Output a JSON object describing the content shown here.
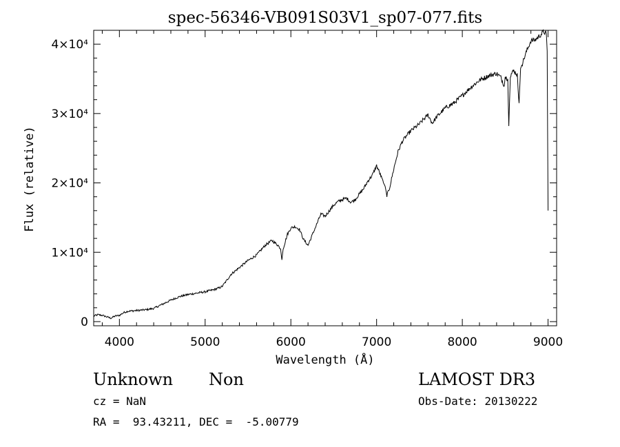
{
  "chart_data": {
    "type": "line",
    "title": "spec-56346-VB091S03V1_sp07-077.fits",
    "xlabel": "Wavelength (Å)",
    "ylabel": "Flux (relative)",
    "xlim": [
      3700,
      9100
    ],
    "ylim": [
      -600,
      42000
    ],
    "x_ticks": [
      4000,
      5000,
      6000,
      7000,
      8000,
      9000
    ],
    "y_ticks": [
      {
        "value": 0,
        "label": "0"
      },
      {
        "value": 10000,
        "label": "1×10⁴"
      },
      {
        "value": 20000,
        "label": "2×10⁴"
      },
      {
        "value": 30000,
        "label": "3×10⁴"
      },
      {
        "value": 40000,
        "label": "4×10⁴"
      }
    ],
    "grid": false,
    "series": [
      {
        "x": [
          3700,
          3750,
          3800,
          3850,
          3900,
          3950,
          4000,
          4050,
          4100,
          4200,
          4300,
          4400,
          4500,
          4600,
          4700,
          4800,
          4900,
          5000,
          5100,
          5170,
          5200,
          5250,
          5300,
          5400,
          5500,
          5600,
          5700,
          5780,
          5850,
          5880,
          5895,
          5910,
          5960,
          6000,
          6050,
          6100,
          6150,
          6200,
          6250,
          6300,
          6350,
          6400,
          6450,
          6500,
          6550,
          6600,
          6650,
          6700,
          6750,
          6800,
          6850,
          6900,
          6950,
          7000,
          7050,
          7080,
          7100,
          7120,
          7150,
          7200,
          7250,
          7300,
          7350,
          7400,
          7450,
          7500,
          7550,
          7600,
          7650,
          7700,
          7800,
          7900,
          8000,
          8100,
          8200,
          8300,
          8400,
          8450,
          8490,
          8500,
          8530,
          8542,
          8560,
          8600,
          8640,
          8662,
          8680,
          8700,
          8750,
          8800,
          8850,
          8900,
          8950,
          8980,
          8990,
          9000
        ],
        "y": [
          800,
          1000,
          900,
          700,
          500,
          800,
          900,
          1300,
          1500,
          1600,
          1700,
          1900,
          2500,
          3100,
          3600,
          3900,
          4100,
          4300,
          4600,
          4900,
          5100,
          5900,
          6800,
          7800,
          8800,
          9600,
          11000,
          11700,
          11000,
          10500,
          8900,
          10500,
          12600,
          13500,
          13700,
          13300,
          11800,
          11000,
          12500,
          14000,
          15500,
          15200,
          16000,
          16800,
          17300,
          17600,
          17800,
          17200,
          17600,
          18400,
          19200,
          20300,
          21100,
          22500,
          21000,
          20000,
          19500,
          18200,
          19200,
          22000,
          24500,
          26000,
          26800,
          27500,
          28000,
          28500,
          29200,
          29800,
          28600,
          29500,
          30800,
          31500,
          32600,
          33800,
          34800,
          35400,
          35800,
          35200,
          34000,
          35300,
          35000,
          28200,
          35500,
          36200,
          35600,
          31500,
          36500,
          37200,
          39000,
          40500,
          40600,
          41200,
          41800,
          41500,
          39000,
          16000
        ]
      }
    ]
  },
  "footer": {
    "object_class": "Unknown",
    "object_subclass": "Non",
    "cz": "cz = NaN",
    "radec": "RA =  93.43211, DEC =  -5.00779",
    "survey": "LAMOST DR3",
    "obs_date": "Obs-Date: 20130222"
  }
}
